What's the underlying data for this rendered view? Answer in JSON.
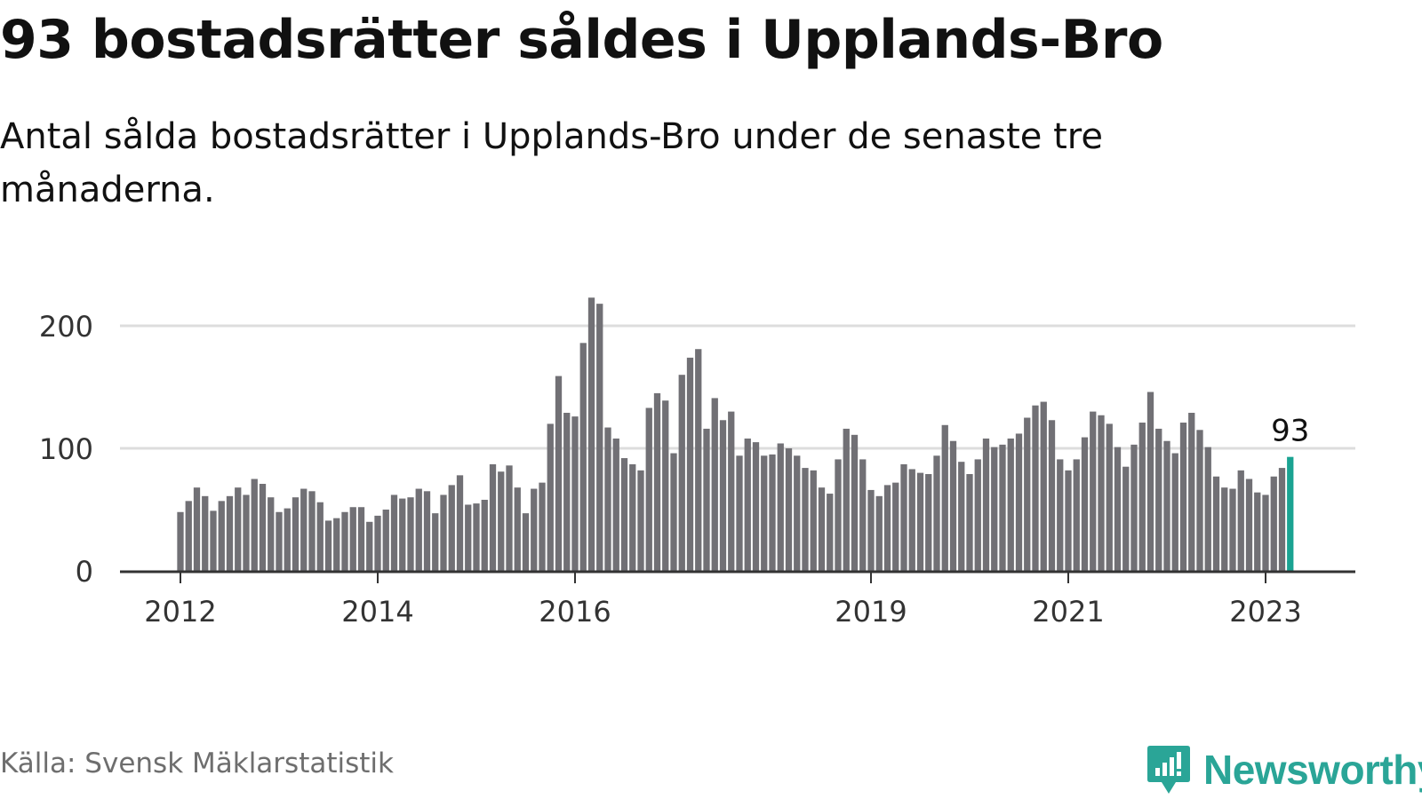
{
  "header": {
    "title": "93 bostadsrätter såldes i Upplands-Bro",
    "subtitle": "Antal sålda bostadsrätter i Upplands-Bro under de senaste tre månaderna."
  },
  "footer": {
    "source": "Källa: Svensk Mäklarstatistik",
    "brand": "Newsworthy"
  },
  "colors": {
    "bar": "#717075",
    "highlight": "#1aa392",
    "grid": "#dddddd",
    "axis": "#333333",
    "brand": "#2aa597"
  },
  "chart_data": {
    "type": "bar",
    "title": "93 bostadsrätter såldes i Upplands-Bro",
    "xlabel": "",
    "ylabel": "",
    "ylim": [
      0,
      225
    ],
    "yticks": [
      0,
      100,
      200
    ],
    "ytick_labels": [
      "0",
      "100",
      "200"
    ],
    "xtick_labels": [
      {
        "label": "2012",
        "index": 0
      },
      {
        "label": "2014",
        "index": 24
      },
      {
        "label": "2016",
        "index": 48
      },
      {
        "label": "2019",
        "index": 84
      },
      {
        "label": "2021",
        "index": 108
      },
      {
        "label": "2023",
        "index": 132
      }
    ],
    "highlight_index": 135,
    "highlight_label": "93",
    "values": [
      48,
      57,
      68,
      61,
      49,
      57,
      61,
      68,
      62,
      75,
      71,
      60,
      48,
      51,
      60,
      67,
      65,
      56,
      41,
      43,
      48,
      52,
      52,
      40,
      45,
      50,
      62,
      59,
      60,
      67,
      65,
      47,
      62,
      70,
      78,
      54,
      55,
      58,
      87,
      81,
      86,
      68,
      47,
      67,
      72,
      120,
      159,
      129,
      126,
      186,
      223,
      218,
      117,
      108,
      92,
      87,
      82,
      133,
      145,
      139,
      96,
      160,
      174,
      181,
      116,
      141,
      123,
      130,
      94,
      108,
      105,
      94,
      95,
      104,
      100,
      94,
      84,
      82,
      68,
      63,
      91,
      116,
      111,
      91,
      66,
      61,
      70,
      72,
      87,
      83,
      80,
      79,
      94,
      119,
      106,
      89,
      79,
      91,
      108,
      101,
      103,
      108,
      112,
      125,
      135,
      138,
      123,
      91,
      82,
      91,
      109,
      130,
      127,
      120,
      101,
      85,
      103,
      121,
      146,
      116,
      106,
      96,
      121,
      129,
      115,
      101,
      77,
      68,
      67,
      82,
      75,
      64,
      62,
      77,
      84,
      93
    ]
  }
}
